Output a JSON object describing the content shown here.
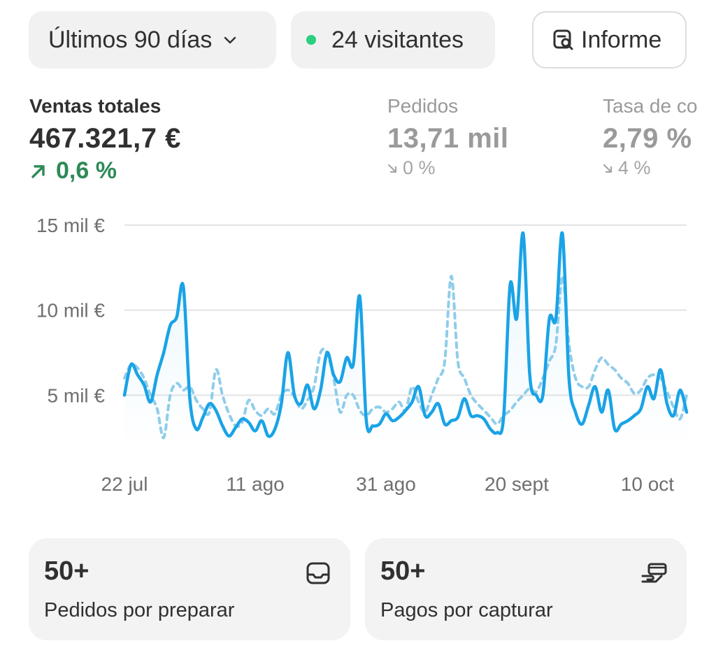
{
  "header": {
    "range_label": "Últimos 90 días",
    "visitors_label": "24 visitantes",
    "report_label": "Informe"
  },
  "metrics": [
    {
      "label": "Ventas totales",
      "value": "467.321,7 €",
      "delta": "0,6 %"
    },
    {
      "label": "Pedidos",
      "value": "13,71 mil",
      "delta": "0 %"
    },
    {
      "label": "Tasa de co",
      "value": "2,79 %",
      "delta": "4 %"
    }
  ],
  "colors": {
    "primary_line": "#1aa3e6",
    "comparison_line": "#8fcdea",
    "positive": "#2d8a57",
    "live_dot": "#29d07f"
  },
  "chart_data": {
    "type": "line",
    "y_ticks": [
      "15 mil €",
      "10 mil €",
      "5 mil €"
    ],
    "y_tick_values": [
      15000,
      10000,
      5000
    ],
    "ylim": [
      0,
      15000
    ],
    "x_ticks": [
      "22 jul",
      "11 ago",
      "31 ago",
      "20 sept",
      "10 oct"
    ],
    "x_tick_index": [
      0,
      20,
      40,
      60,
      80
    ],
    "grid": true,
    "series": [
      {
        "values": [
          5000,
          6800,
          6200,
          5600,
          4600,
          6200,
          7500,
          9100,
          9600,
          11400,
          4800,
          3000,
          3700,
          4500,
          4100,
          3200,
          2600,
          3100,
          3600,
          3400,
          2900,
          3500,
          2600,
          3000,
          4500,
          7500,
          5000,
          4500,
          5600,
          4200,
          5300,
          7500,
          6200,
          5800,
          7200,
          6800,
          10800,
          3500,
          3200,
          3300,
          3900,
          3500,
          3700,
          4100,
          4600,
          5500,
          3800,
          4000,
          4500,
          3300,
          3500,
          3700,
          4800,
          3800,
          3800,
          3600,
          3000,
          2800,
          3700,
          11500,
          9500,
          14500,
          6200,
          5000,
          5000,
          9500,
          9500,
          14500,
          6000,
          4000,
          3300,
          4400,
          5500,
          4000,
          5300,
          3000,
          3300,
          3500,
          3800,
          4200,
          5500,
          4800,
          6500,
          4500,
          3800,
          5300,
          4000
        ],
        "comparison": false
      },
      {
        "values": [
          6000,
          6800,
          6600,
          6000,
          5000,
          4200,
          2500,
          5000,
          5700,
          5300,
          5500,
          4700,
          4200,
          4000,
          6500,
          5000,
          3900,
          3200,
          3400,
          4700,
          4100,
          3800,
          4200,
          3900,
          5000,
          5300,
          4900,
          4200,
          4700,
          5500,
          7500,
          7500,
          6000,
          4000,
          5000,
          5000,
          4100,
          3800,
          4200,
          4300,
          4000,
          4200,
          4600,
          4100,
          5500,
          4600,
          4000,
          5000,
          6000,
          7000,
          12000,
          7000,
          6000,
          5000,
          4500,
          4100,
          3700,
          3300,
          3800,
          4100,
          4600,
          5000,
          5400,
          5200,
          6000,
          7000,
          8000,
          12000,
          8000,
          6000,
          5500,
          5500,
          6500,
          7200,
          6800,
          6500,
          6000,
          5700,
          5100,
          5300,
          6000,
          6200,
          6000,
          5200,
          4300,
          3600,
          5000
        ],
        "comparison": true
      }
    ]
  },
  "cards": [
    {
      "count": "50+",
      "label": "Pedidos por preparar",
      "icon": "inbox-icon"
    },
    {
      "count": "50+",
      "label": "Pagos por capturar",
      "icon": "hand-card-icon"
    }
  ]
}
